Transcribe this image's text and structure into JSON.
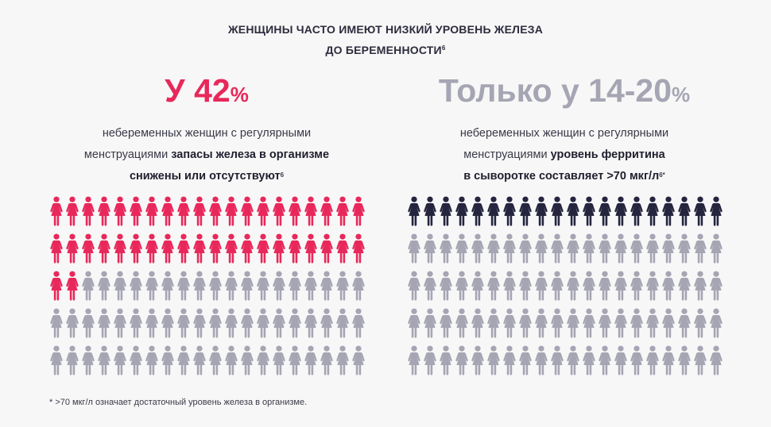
{
  "title": {
    "line1": "ЖЕНЩИНЫ ЧАСТО ИМЕЮТ НИЗКИЙ УРОВЕНЬ ЖЕЛЕЗА",
    "line2": "ДО БЕРЕМЕННОСТИ",
    "ref": "6"
  },
  "left": {
    "headline": "У 42",
    "headline_unit": "%",
    "desc_plain1": "небеременных женщин с регулярными",
    "desc_plain2": "менструациями ",
    "desc_bold1": "запасы железа в организме",
    "desc_bold2": "снижены или отсутствуют",
    "ref": "6",
    "highlighted_count": 42,
    "total_count": 100,
    "highlight_color": "#e8285a",
    "base_color": "#a5a5b3"
  },
  "right": {
    "headline": "Только у 14-20",
    "headline_unit": "%",
    "desc_plain1": "небеременных женщин с регулярными",
    "desc_plain2": "менструациями ",
    "desc_bold1": "уровень ферритина",
    "desc_bold2": "в сыворотке составляет >70 мкг/л",
    "ref": "6*",
    "highlighted_count": 20,
    "total_count": 100,
    "highlight_color": "#25253f",
    "base_color": "#a5a5b3"
  },
  "footnote": "*  >70 мкг/л означает достаточный уровень железа в организме."
}
